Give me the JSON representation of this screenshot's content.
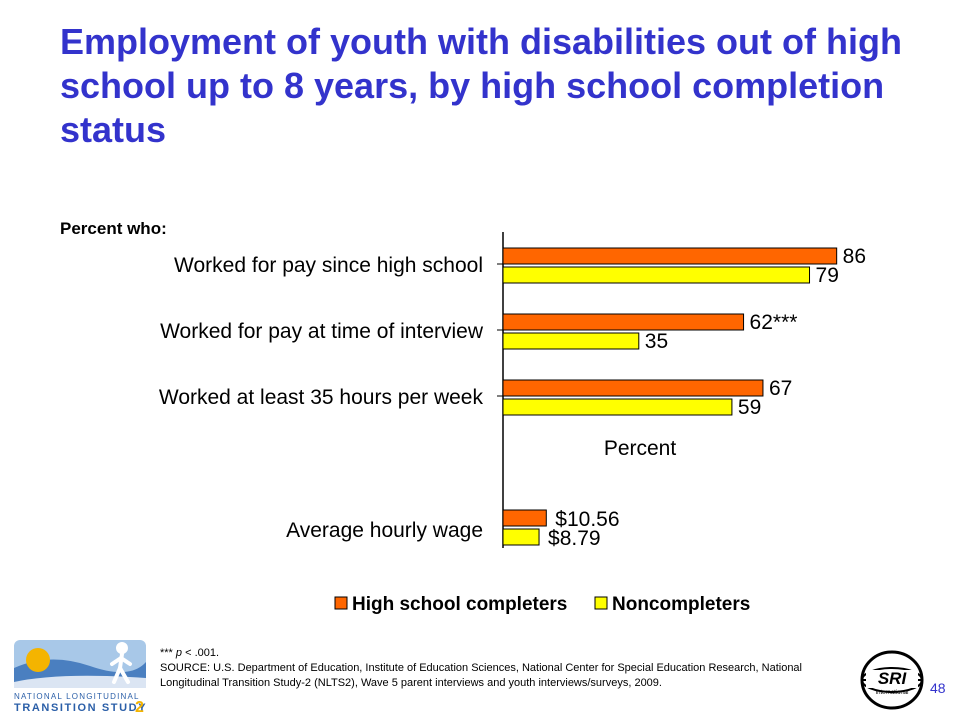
{
  "title": "Employment of youth with disabilities out of high school up to 8 years, by high school completion status",
  "subtitle": "Percent who:",
  "chart_data": {
    "type": "bar",
    "orientation": "horizontal",
    "categories": [
      "Worked for pay since high school",
      "Worked for pay at time of interview",
      "Worked at least 35 hours per week"
    ],
    "series": [
      {
        "name": "High school completers",
        "values": [
          86,
          62,
          67
        ],
        "labels": [
          "86",
          "62***",
          "67"
        ],
        "color": "#ff6600"
      },
      {
        "name": "Noncompleters",
        "values": [
          79,
          35,
          59
        ],
        "labels": [
          "79",
          "35",
          "59"
        ],
        "color": "#ffff00"
      }
    ],
    "xlabel": "Percent",
    "xlim": [
      0,
      100
    ],
    "wage": {
      "category": "Average hourly wage",
      "values": [
        10.56,
        8.79
      ],
      "labels": [
        "$10.56",
        "$8.79"
      ]
    },
    "legend": [
      "High school completers",
      "Noncompleters"
    ],
    "legend_position": "bottom"
  },
  "footnote": {
    "sig": "*** ",
    "sig_p": "p",
    "sig_rest": " < .001.",
    "source": "SOURCE: U.S. Department of Education, Institute of Education Sciences, National Center for Special Education Research, National Longitudinal Transition Study-2 (NLTS2), Wave 5 parent interviews and youth interviews/surveys, 2009."
  },
  "page_number": "48",
  "logos": {
    "left_line1": "NATIONAL LONGITUDINAL",
    "left_line2": "TRANSITION STUDY",
    "left_num": "2",
    "right": "SRI",
    "right_sub": "International"
  },
  "colors": {
    "title": "#3333cc",
    "completers": "#ff6600",
    "noncompleters": "#ffff00"
  }
}
